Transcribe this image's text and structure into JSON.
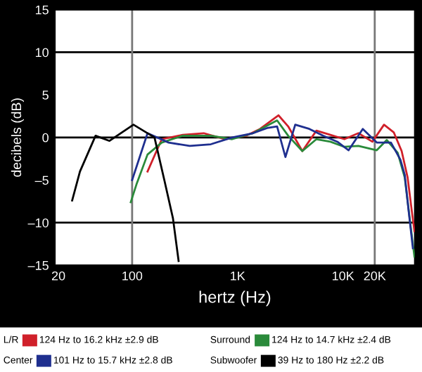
{
  "chart_data": {
    "type": "line",
    "xlabel": "hertz (Hz)",
    "ylabel": "decibels (dB)",
    "log": "x",
    "xlim": [
      18.5,
      48000
    ],
    "xticks": [
      20,
      100,
      {
        "value": 1000,
        "label": "1K"
      },
      {
        "value": 10000,
        "label": "10K"
      },
      {
        "value": 20000,
        "label": "20K"
      }
    ],
    "ylim": [
      -15,
      15
    ],
    "yticks": [
      {
        "value": -15,
        "label": "–15"
      },
      {
        "value": -10,
        "label": "–10"
      },
      {
        "value": -5,
        "label": "–5"
      },
      0,
      5,
      10,
      15
    ],
    "grid": false,
    "legend": "bottom",
    "marker": "none",
    "line_style": "solid",
    "ref_lines": [
      {
        "axis": "y",
        "value": 10,
        "color": "#000000"
      },
      {
        "axis": "y",
        "value": 0,
        "color": "#000000"
      },
      {
        "axis": "y",
        "value": -10,
        "color": "#000000"
      },
      {
        "axis": "x",
        "value": 100,
        "color": "#777777"
      },
      {
        "axis": "x",
        "value": 20000,
        "color": "#777777"
      }
    ],
    "annotations": [
      "124 Hz to 16.2 kHz ±2.9 dB",
      "124 Hz to 14.7 kHz ±2.4 dB",
      "101 Hz to 15.7 kHz ±2.8 dB",
      "39 Hz to 180 Hz ±2.2 dB"
    ],
    "series": [
      {
        "name": "L/R",
        "color": "#d0202a",
        "x": [
          140,
          191,
          302,
          478,
          758,
          1202,
          1634,
          2442,
          3020,
          4113,
          5597,
          7587,
          10300,
          14000,
          19000,
          24500,
          30300,
          36000,
          41000,
          45000,
          47600
        ],
        "values": [
          -4,
          -0.2,
          0.3,
          0.5,
          -0.2,
          0.2,
          1.0,
          2.6,
          1.3,
          -1.6,
          0.8,
          0.3,
          -0.2,
          0.5,
          -0.5,
          1.5,
          0.6,
          -1.6,
          -4.7,
          -8.7,
          -11
        ]
      },
      {
        "name": "Surround",
        "color": "#2a8a3a",
        "x": [
          97,
          110,
          140,
          191,
          302,
          558,
          888,
          1400,
          2371,
          3020,
          4113,
          5597,
          7587,
          10300,
          14000,
          20900,
          26000,
          33000,
          38500,
          43700,
          47600
        ],
        "values": [
          -7.6,
          -5.5,
          -2,
          -0.6,
          0.2,
          0.2,
          -0.2,
          0.5,
          2,
          0.2,
          -1.6,
          -0.2,
          -0.5,
          -1.1,
          -1,
          -1.5,
          -0.3,
          -1.8,
          -4.7,
          -10.3,
          -14
        ]
      },
      {
        "name": "Center",
        "color": "#1f2f8f",
        "x": [
          100,
          140,
          222,
          352,
          558,
          888,
          1400,
          1905,
          2371,
          2844,
          3524,
          4797,
          6510,
          8830,
          11300,
          15400,
          20900,
          28500,
          35000,
          38500,
          42000,
          46000
        ],
        "values": [
          -5,
          0.5,
          -0.6,
          -1.0,
          -0.8,
          0,
          0.5,
          1.1,
          1.3,
          -2.3,
          1.5,
          1,
          0.2,
          -0.5,
          -1.5,
          1,
          -0.6,
          -0.6,
          -2.6,
          -4.4,
          -8.7,
          -13
        ]
      },
      {
        "name": "Subwoofer",
        "color": "#000000",
        "x": [
          27,
          32,
          45,
          61,
          103,
          163,
          202,
          244,
          276
        ],
        "values": [
          -7.4,
          -4,
          0.2,
          -0.4,
          1.5,
          0,
          -5,
          -9.5,
          -14.5
        ]
      }
    ]
  }
}
